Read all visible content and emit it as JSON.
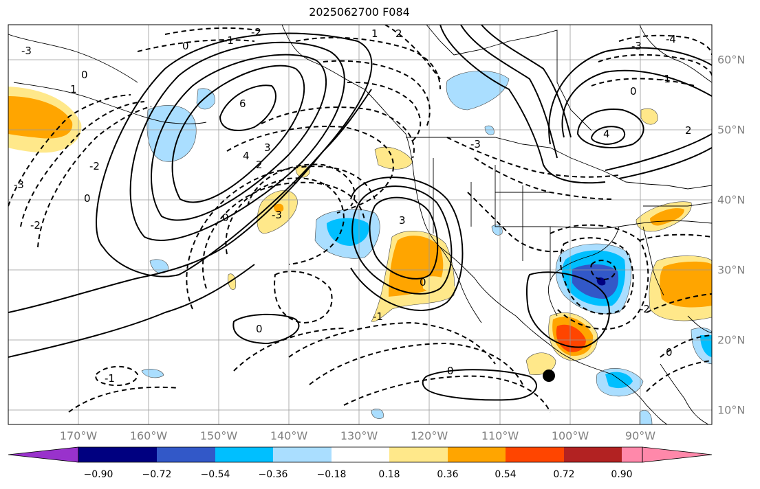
{
  "title": "2025062700 F084",
  "map": {
    "lon_labels": [
      "170°W",
      "160°W",
      "150°W",
      "140°W",
      "130°W",
      "120°W",
      "110°W",
      "100°W",
      "90°W"
    ],
    "lat_labels": [
      "60°N",
      "50°N",
      "40°N",
      "30°N",
      "20°N",
      "10°N"
    ],
    "lon_range": [
      -180,
      -80
    ],
    "lat_range": [
      7,
      65
    ],
    "marker": {
      "lon": -103,
      "lat": 15
    }
  },
  "contours": {
    "labels": [
      "6",
      "4",
      "3",
      "2",
      "1",
      "0",
      "0",
      "0",
      "-1",
      "-2",
      "-3",
      "3",
      "-3",
      "-1",
      "-2",
      "-3",
      "0",
      "0",
      "0",
      "-4",
      "-3",
      "-2",
      "-1",
      "0",
      "1",
      "2",
      "-2",
      "-1",
      "0",
      "4",
      "2",
      "-3",
      "0"
    ]
  },
  "colorbar": {
    "ticks": [
      "−0.90",
      "−0.72",
      "−0.54",
      "−0.36",
      "−0.18",
      "0.18",
      "0.36",
      "0.54",
      "0.72",
      "0.90"
    ],
    "colors": [
      "#9932cc",
      "#000080",
      "#3258c8",
      "#00bfff",
      "#aadeff",
      "#ffffff",
      "#ffe88a",
      "#ffa500",
      "#ff4500",
      "#b22222",
      "#ff88aa"
    ]
  }
}
